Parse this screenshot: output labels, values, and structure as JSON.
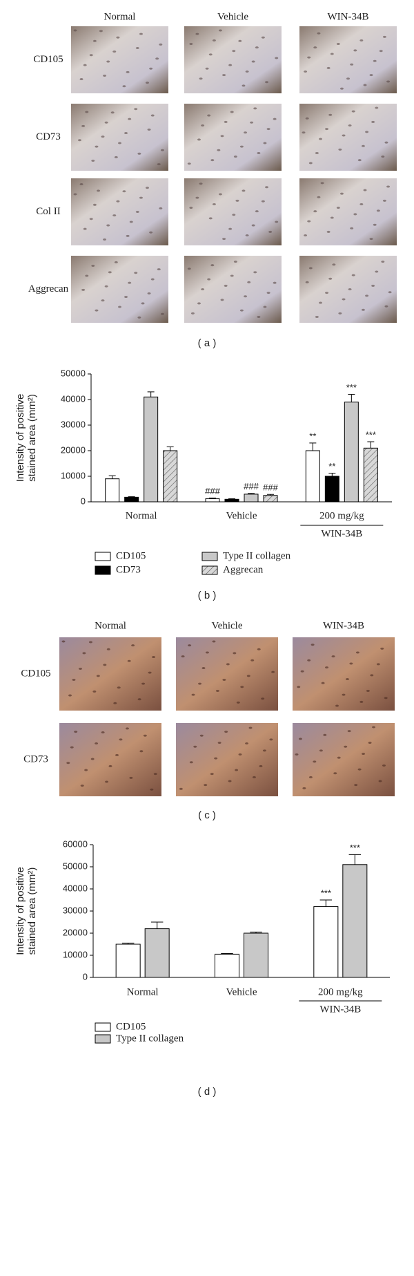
{
  "panel_a": {
    "columns": [
      "Normal",
      "Vehicle",
      "WIN-34B"
    ],
    "rows": [
      "CD105",
      "CD73",
      "Col II",
      "Aggrecan"
    ],
    "caption": "( a )"
  },
  "chart_data": [
    {
      "type": "bar",
      "caption": "( b )",
      "ylabel": [
        "Intensity of positive",
        "stained area (mm²)"
      ],
      "categories": [
        "Normal",
        "Vehicle",
        "200 mg/kg"
      ],
      "group_label": "WIN-34B",
      "ylim": [
        0,
        50000
      ],
      "yticks": [
        0,
        10000,
        20000,
        30000,
        40000,
        50000
      ],
      "series": [
        {
          "name": "CD105",
          "color": "#ffffff",
          "hatch": false,
          "values": [
            9000,
            1200,
            20000
          ],
          "errors": [
            1200,
            300,
            3000
          ],
          "annotations": [
            null,
            "###",
            "**"
          ]
        },
        {
          "name": "CD73",
          "color": "#000000",
          "hatch": false,
          "values": [
            1800,
            1000,
            10000
          ],
          "errors": [
            200,
            200,
            1200
          ],
          "annotations": [
            null,
            null,
            "**"
          ]
        },
        {
          "name": "Type II collagen",
          "color": "#c8c8c8",
          "hatch": false,
          "values": [
            41000,
            3000,
            39000
          ],
          "errors": [
            2000,
            300,
            3000
          ],
          "annotations": [
            null,
            "###",
            "***"
          ]
        },
        {
          "name": "Aggrecan",
          "color": "#d8d8d8",
          "hatch": true,
          "values": [
            20000,
            2500,
            21000
          ],
          "errors": [
            1500,
            400,
            2500
          ],
          "annotations": [
            null,
            "###",
            "***"
          ]
        }
      ]
    },
    {
      "type": "bar",
      "caption": "( d )",
      "ylabel": [
        "Intensity of positive",
        "stained area (mm²)"
      ],
      "categories": [
        "Normal",
        "Vehicle",
        "200 mg/kg"
      ],
      "group_label": "WIN-34B",
      "ylim": [
        0,
        60000
      ],
      "yticks": [
        0,
        10000,
        20000,
        30000,
        40000,
        50000,
        60000
      ],
      "series": [
        {
          "name": "CD105",
          "color": "#ffffff",
          "hatch": false,
          "values": [
            15000,
            10500,
            32000
          ],
          "errors": [
            500,
            300,
            3000
          ],
          "annotations": [
            null,
            null,
            "***"
          ]
        },
        {
          "name": "Type II collagen",
          "color": "#c8c8c8",
          "hatch": false,
          "values": [
            22000,
            20000,
            51000
          ],
          "errors": [
            3000,
            500,
            4500
          ],
          "annotations": [
            null,
            null,
            "***"
          ]
        }
      ]
    }
  ],
  "panel_c": {
    "columns": [
      "Normal",
      "Vehicle",
      "WIN-34B"
    ],
    "rows": [
      "CD105",
      "CD73"
    ],
    "caption": "( c )"
  }
}
